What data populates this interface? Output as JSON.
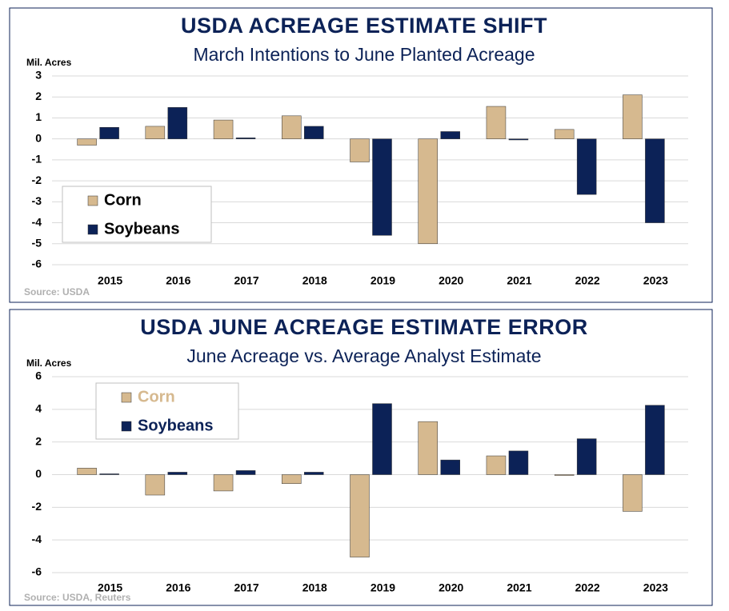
{
  "chart_data": [
    {
      "type": "bar",
      "title": "USDA ACREAGE ESTIMATE SHIFT",
      "subtitle": "March Intentions to June Planted Acreage",
      "y_label": "Mil. Acres",
      "source": "Source: USDA",
      "categories": [
        "2015",
        "2016",
        "2017",
        "2018",
        "2019",
        "2020",
        "2021",
        "2022",
        "2023"
      ],
      "series": [
        {
          "name": "Corn",
          "color": "#d6b98f",
          "legend_text_color": "#000000",
          "values": [
            -0.3,
            0.6,
            0.9,
            1.1,
            -1.1,
            -5.0,
            1.55,
            0.45,
            2.1
          ]
        },
        {
          "name": "Soybeans",
          "color": "#0c2257",
          "legend_text_color": "#000000",
          "values": [
            0.55,
            1.5,
            0.05,
            0.6,
            -4.6,
            0.35,
            -0.05,
            -2.65,
            -4.0
          ]
        }
      ],
      "ylim": [
        -6,
        3
      ],
      "yticks": [
        -6,
        -5,
        -4,
        -3,
        -2,
        -1,
        0,
        1,
        2,
        3
      ],
      "grid": true,
      "legend": "lower left"
    },
    {
      "type": "bar",
      "title": "USDA JUNE ACREAGE ESTIMATE ERROR",
      "subtitle": "June Acreage vs. Average Analyst Estimate",
      "y_label": "Mil. Acres",
      "source": "Source: USDA, Reuters",
      "categories": [
        "2015",
        "2016",
        "2017",
        "2018",
        "2019",
        "2020",
        "2021",
        "2022",
        "2023"
      ],
      "series": [
        {
          "name": "Corn",
          "color": "#d6b98f",
          "legend_text_color": "#d6b98f",
          "values": [
            0.4,
            -1.25,
            -1.0,
            -0.55,
            -5.05,
            3.25,
            1.15,
            -0.05,
            -2.25
          ]
        },
        {
          "name": "Soybeans",
          "color": "#0c2257",
          "legend_text_color": "#0c2257",
          "values": [
            0.05,
            0.15,
            0.25,
            0.15,
            4.35,
            0.9,
            1.45,
            2.2,
            4.25
          ]
        }
      ],
      "ylim": [
        -6,
        6
      ],
      "yticks": [
        -6,
        -4,
        -2,
        0,
        2,
        4,
        6
      ],
      "grid": true,
      "legend": "upper left"
    }
  ]
}
